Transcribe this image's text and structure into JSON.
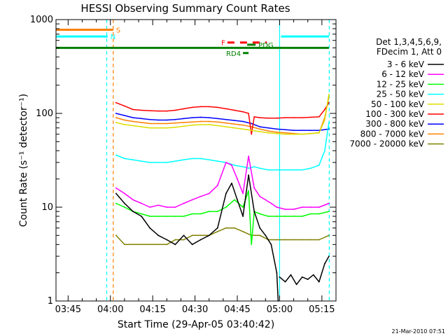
{
  "chart_data": {
    "type": "line",
    "title": "HESSI Observing Summary Count Rates",
    "xlabel": "Start Time (29-Apr-05 03:40:42)",
    "ylabel": "Count Rate (s⁻¹ detector⁻¹)",
    "yscale": "log",
    "ylim": [
      1,
      1000
    ],
    "xlim_minutes": [
      220.7,
      320.0
    ],
    "x_ticks": [
      {
        "m": 225,
        "label": "03:45"
      },
      {
        "m": 240,
        "label": "04:00"
      },
      {
        "m": 255,
        "label": "04:15"
      },
      {
        "m": 270,
        "label": "04:30"
      },
      {
        "m": 285,
        "label": "04:45"
      },
      {
        "m": 300,
        "label": "05:00"
      },
      {
        "m": 315,
        "label": "05:15"
      }
    ],
    "y_ticks": [
      {
        "v": 1,
        "label": "1"
      },
      {
        "v": 10,
        "label": "10"
      },
      {
        "v": 100,
        "label": "100"
      },
      {
        "v": 1000,
        "label": "1000"
      }
    ],
    "legend": {
      "header": [
        "Det 1,3,4,5,6,9,",
        "FDecim 1, Att 0"
      ],
      "placement": "right"
    },
    "series": [
      {
        "name": "3 - 6 keV",
        "color": "#000000",
        "x": [
          242.0,
          245,
          248,
          251,
          254,
          257,
          260,
          263,
          266,
          269,
          272,
          275,
          278,
          281,
          283,
          285,
          287,
          289,
          291,
          293,
          295,
          297,
          299,
          299.5
        ],
        "values": [
          14,
          11,
          9,
          8,
          6,
          5,
          4.5,
          4,
          5,
          4,
          4.5,
          5,
          6,
          14,
          18,
          12,
          8,
          22,
          9,
          6,
          5,
          4,
          2,
          1
        ]
      },
      {
        "name": "3 - 6 keV",
        "color": "#000000",
        "x": [
          300,
          302,
          304,
          306,
          308,
          310,
          312,
          314,
          316,
          317.5
        ],
        "values": [
          1.8,
          1.6,
          1.9,
          1.5,
          1.8,
          1.7,
          1.9,
          1.6,
          2.5,
          3
        ]
      },
      {
        "name": "6 - 12 keV",
        "color": "#ff00ff",
        "x": [
          242.0,
          245,
          248,
          251,
          254,
          257,
          260,
          263,
          266,
          269,
          272,
          275,
          278,
          281,
          283,
          285,
          287,
          289,
          291,
          293,
          295,
          297,
          299,
          302,
          305,
          308,
          311,
          314,
          317.5
        ],
        "values": [
          16,
          14,
          12,
          11,
          10,
          10.5,
          10,
          10,
          11,
          12,
          13,
          14,
          17,
          30,
          28,
          20,
          14,
          35,
          16,
          13,
          12,
          11,
          10,
          9.5,
          9.5,
          10,
          10,
          10,
          11
        ]
      },
      {
        "name": "12 - 25 keV",
        "color": "#00ff00",
        "x": [
          242.0,
          245,
          248,
          251,
          254,
          257,
          260,
          263,
          266,
          269,
          272,
          275,
          278,
          281,
          284,
          287,
          289,
          290,
          291,
          293,
          296,
          299,
          302,
          305,
          308,
          311,
          314,
          317.5
        ],
        "values": [
          11,
          10,
          9,
          8.5,
          8,
          8,
          8,
          8,
          8,
          8.5,
          8.5,
          9,
          9,
          10,
          12,
          10,
          15,
          4,
          9,
          8.5,
          8,
          8,
          8,
          8,
          8,
          8.5,
          8.5,
          9
        ]
      },
      {
        "name": "25 - 50 keV",
        "color": "#00ffff",
        "x": [
          242.0,
          245,
          248,
          251,
          254,
          257,
          260,
          263,
          266,
          269,
          272,
          275,
          278,
          281,
          284,
          287,
          289,
          291,
          293,
          296,
          299,
          302,
          305,
          308,
          311,
          314,
          316,
          317.5
        ],
        "values": [
          36,
          33,
          32,
          31,
          30,
          30,
          30,
          31,
          32,
          33,
          33,
          32,
          31,
          30,
          28,
          27,
          26,
          27,
          26,
          25,
          25,
          25,
          25,
          25,
          26,
          28,
          40,
          80
        ]
      },
      {
        "name": "50 - 100 keV",
        "color": "#dddd00",
        "x": [
          242.0,
          245,
          248,
          251,
          254,
          257,
          260,
          263,
          266,
          269,
          272,
          275,
          278,
          281,
          284,
          287,
          290,
          293,
          296,
          299,
          302,
          305,
          308,
          311,
          314,
          316,
          317.5
        ],
        "values": [
          80,
          76,
          74,
          72,
          70,
          70,
          70,
          71,
          73,
          75,
          76,
          76,
          74,
          72,
          70,
          68,
          66,
          64,
          62,
          61,
          60,
          60,
          60,
          61,
          62,
          85,
          160
        ]
      },
      {
        "name": "100 - 300 keV",
        "color": "#ff0000",
        "x": [
          242.0,
          245,
          248,
          251,
          254,
          257,
          260,
          263,
          266,
          269,
          272,
          275,
          278,
          281,
          284,
          287,
          289,
          290,
          291,
          293,
          296,
          299,
          302,
          305,
          308,
          311,
          314,
          316,
          317.5
        ],
        "values": [
          130,
          120,
          110,
          108,
          107,
          106,
          106,
          108,
          112,
          116,
          118,
          118,
          116,
          112,
          108,
          104,
          100,
          60,
          92,
          90,
          89,
          89,
          90,
          90,
          90,
          91,
          92,
          110,
          130
        ]
      },
      {
        "name": "300 - 800 keV",
        "color": "#0000ff",
        "x": [
          242.0,
          245,
          248,
          251,
          254,
          257,
          260,
          263,
          266,
          269,
          272,
          275,
          278,
          281,
          284,
          287,
          290,
          293,
          296,
          299,
          302,
          305,
          308,
          311,
          314,
          317.5
        ],
        "values": [
          100,
          95,
          90,
          88,
          86,
          85,
          85,
          86,
          88,
          90,
          91,
          90,
          88,
          86,
          84,
          82,
          78,
          72,
          70,
          68,
          67,
          66,
          66,
          66,
          66,
          68
        ]
      },
      {
        "name": "800 - 7000 keV",
        "color": "#ff8000",
        "x": [
          242.0,
          245,
          248,
          251,
          254,
          257,
          260,
          263,
          266,
          269,
          272,
          275,
          278,
          281,
          284,
          287,
          290,
          293,
          296,
          299,
          302,
          305,
          308,
          311,
          314,
          316,
          317.5
        ],
        "values": [
          90,
          85,
          82,
          80,
          78,
          78,
          78,
          79,
          80,
          81,
          82,
          82,
          81,
          79,
          77,
          75,
          72,
          68,
          65,
          63,
          62,
          61,
          60,
          61,
          62,
          90,
          150
        ]
      },
      {
        "name": "7000 - 20000 keV",
        "color": "#808000",
        "x": [
          242.0,
          245,
          248,
          251,
          254,
          257,
          260,
          263,
          266,
          269,
          272,
          275,
          278,
          281,
          284,
          287,
          290,
          293,
          296,
          299,
          302,
          305,
          308,
          311,
          314,
          317.5
        ],
        "values": [
          5,
          4,
          4,
          4,
          4,
          4,
          4,
          4.5,
          4.5,
          5,
          5,
          5,
          5.5,
          6,
          6,
          5.5,
          5,
          5,
          4.5,
          4.5,
          4.5,
          4.5,
          4.5,
          4.5,
          4.5,
          5
        ]
      }
    ],
    "flag_lines": [
      {
        "label": "S",
        "color": "#ff8000",
        "value": 780,
        "x": [
          220.7,
          241.0
        ]
      },
      {
        "label": "N",
        "color": "#00ffff",
        "value": 660,
        "x": [
          220.7,
          239.0
        ]
      },
      {
        "label": "",
        "color": "#00ffff",
        "value": 660,
        "x": [
          300.5,
          317.5
        ]
      },
      {
        "label": "",
        "color": "#008000",
        "value": 500,
        "x": [
          220.7,
          317.5
        ]
      },
      {
        "label": "F",
        "color": "#ff0000",
        "value": 570,
        "x": [
          281.5,
          295.5
        ],
        "dashed": true
      },
      {
        "label": "PDG",
        "color": "#008000",
        "value": 540,
        "x": [
          288.5,
          291.5
        ]
      },
      {
        "label": "RD4",
        "color": "#008000",
        "value": 440,
        "x": [
          287.0,
          289.0
        ]
      }
    ],
    "vlines": [
      {
        "x": 238.7,
        "color": "#00ffff",
        "dashed": true
      },
      {
        "x": 241.0,
        "color": "#ff8000",
        "dashed": true
      },
      {
        "x": 300.0,
        "color": "#00ffff",
        "dashed": false
      },
      {
        "x": 317.6,
        "color": "#00ffff",
        "dashed": true
      }
    ],
    "grid": false
  },
  "footer": {
    "timestamp": "21-Mar-2010 07:51"
  }
}
